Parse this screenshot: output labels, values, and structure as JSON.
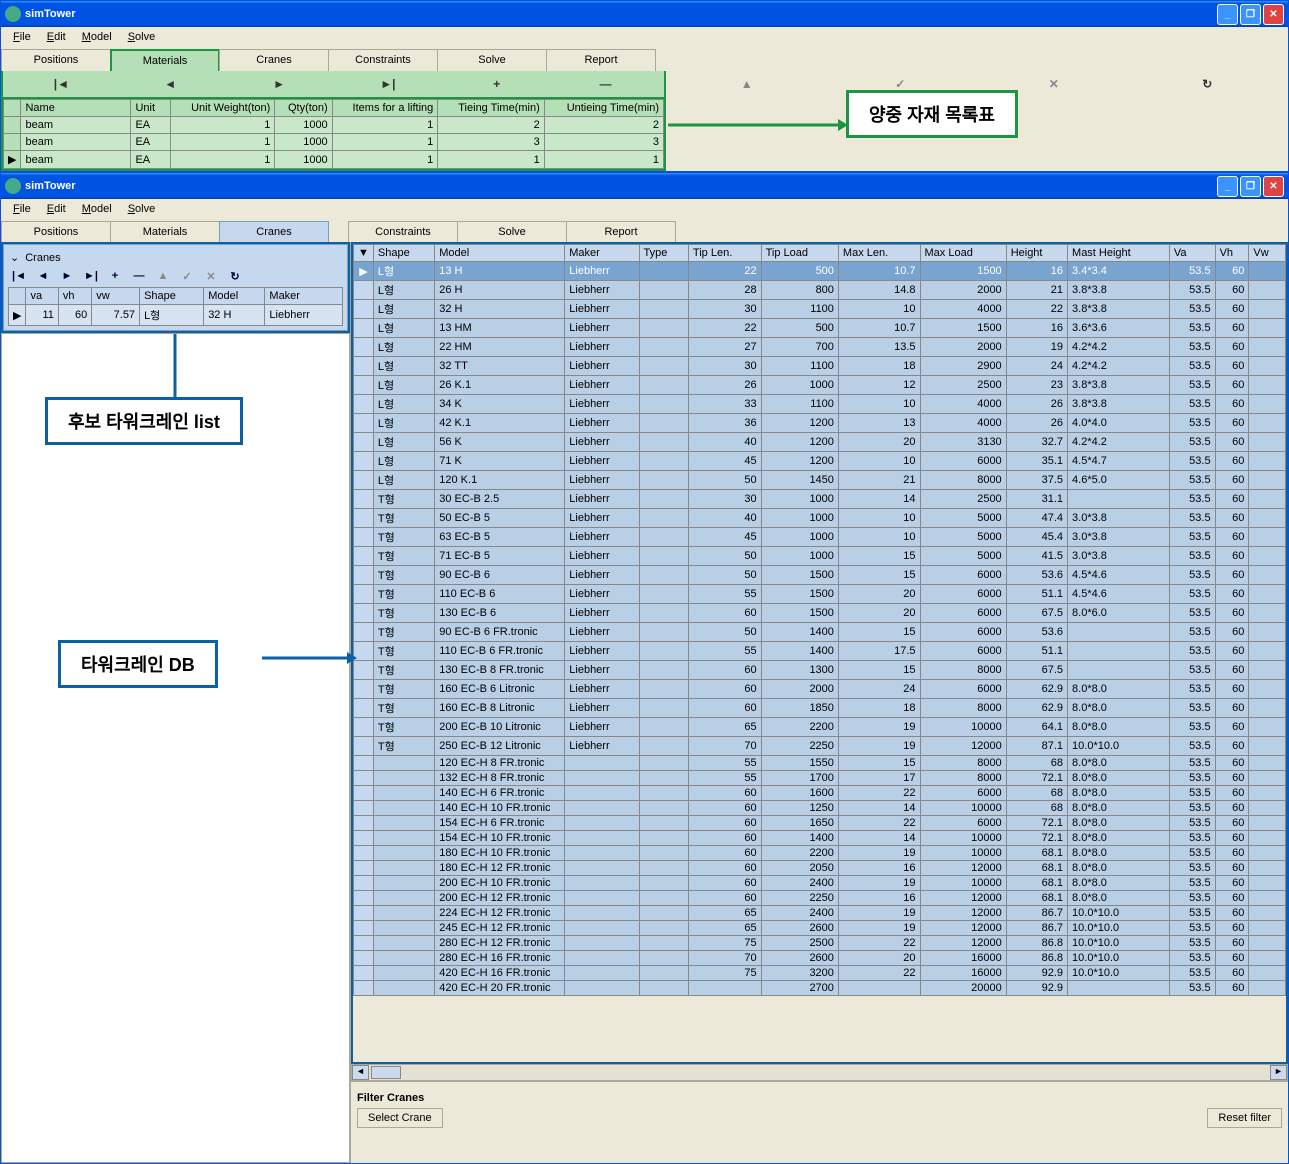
{
  "app": {
    "title": "simTower"
  },
  "menu": {
    "file": "File",
    "edit": "Edit",
    "model": "Model",
    "solve": "Solve"
  },
  "tabs": {
    "positions": "Positions",
    "materials": "Materials",
    "cranes": "Cranes",
    "constraints": "Constraints",
    "solve": "Solve",
    "report": "Report"
  },
  "nav": {
    "first": "|◄",
    "prev": "◄",
    "next": "►",
    "last": "►|",
    "plus": "+",
    "minus": "—",
    "up": "▲",
    "check": "✓",
    "x": "✕",
    "refresh": "↻"
  },
  "materials": {
    "headers": {
      "name": "Name",
      "unit": "Unit",
      "unitweight": "Unit Weight(ton)",
      "qty": "Qty(ton)",
      "items": "Items for a lifting",
      "tieing": "Tieing Time(min)",
      "untieing": "Untieing Time(min)"
    },
    "rows": [
      {
        "name": "beam",
        "unit": "EA",
        "uw": "1",
        "qty": "1000",
        "items": "1",
        "tie": "2",
        "untie": "2"
      },
      {
        "name": "beam",
        "unit": "EA",
        "uw": "1",
        "qty": "1000",
        "items": "1",
        "tie": "3",
        "untie": "3"
      },
      {
        "name": "beam",
        "unit": "EA",
        "uw": "1",
        "qty": "1000",
        "items": "1",
        "tie": "1",
        "untie": "1"
      }
    ]
  },
  "callouts": {
    "materials": "양중 자재 목록표",
    "candidate": "후보 타워크레인 list",
    "db": "타워크레인 DB"
  },
  "cranes": {
    "panel_title": "Cranes",
    "cand_headers": {
      "va": "va",
      "vh": "vh",
      "vw": "vw",
      "shape": "Shape",
      "model": "Model",
      "maker": "Maker"
    },
    "cand_row": {
      "va": "11",
      "vh": "60",
      "vw": "7.57",
      "shape": "L형",
      "model": "32 H",
      "maker": "Liebherr"
    },
    "db_headers": {
      "shape": "Shape",
      "model": "Model",
      "maker": "Maker",
      "type": "Type",
      "tiplen": "Tip Len.",
      "tipload": "Tip Load",
      "maxlen": "Max Len.",
      "maxload": "Max Load",
      "height": "Height",
      "mast": "Mast Height",
      "va": "Va",
      "vh": "Vh",
      "vw": "Vw"
    },
    "db_rows": [
      {
        "s": "L형",
        "m": "13 H",
        "mk": "Liebherr",
        "tl": "22",
        "tld": "500",
        "ml": "10.7",
        "mld": "1500",
        "h": "16",
        "mh": "3.4*3.4",
        "va": "53.5",
        "vh": "60",
        "sel": true
      },
      {
        "s": "L형",
        "m": "26 H",
        "mk": "Liebherr",
        "tl": "28",
        "tld": "800",
        "ml": "14.8",
        "mld": "2000",
        "h": "21",
        "mh": "3.8*3.8",
        "va": "53.5",
        "vh": "60"
      },
      {
        "s": "L형",
        "m": "32 H",
        "mk": "Liebherr",
        "tl": "30",
        "tld": "1100",
        "ml": "10",
        "mld": "4000",
        "h": "22",
        "mh": "3.8*3.8",
        "va": "53.5",
        "vh": "60"
      },
      {
        "s": "L형",
        "m": "13 HM",
        "mk": "Liebherr",
        "tl": "22",
        "tld": "500",
        "ml": "10.7",
        "mld": "1500",
        "h": "16",
        "mh": "3.6*3.6",
        "va": "53.5",
        "vh": "60"
      },
      {
        "s": "L형",
        "m": "22 HM",
        "mk": "Liebherr",
        "tl": "27",
        "tld": "700",
        "ml": "13.5",
        "mld": "2000",
        "h": "19",
        "mh": "4.2*4.2",
        "va": "53.5",
        "vh": "60"
      },
      {
        "s": "L형",
        "m": "32 TT",
        "mk": "Liebherr",
        "tl": "30",
        "tld": "1100",
        "ml": "18",
        "mld": "2900",
        "h": "24",
        "mh": "4.2*4.2",
        "va": "53.5",
        "vh": "60"
      },
      {
        "s": "L형",
        "m": "26 K.1",
        "mk": "Liebherr",
        "tl": "26",
        "tld": "1000",
        "ml": "12",
        "mld": "2500",
        "h": "23",
        "mh": "3.8*3.8",
        "va": "53.5",
        "vh": "60"
      },
      {
        "s": "L형",
        "m": "34 K",
        "mk": "Liebherr",
        "tl": "33",
        "tld": "1100",
        "ml": "10",
        "mld": "4000",
        "h": "26",
        "mh": "3.8*3.8",
        "va": "53.5",
        "vh": "60"
      },
      {
        "s": "L형",
        "m": "42 K.1",
        "mk": "Liebherr",
        "tl": "36",
        "tld": "1200",
        "ml": "13",
        "mld": "4000",
        "h": "26",
        "mh": "4.0*4.0",
        "va": "53.5",
        "vh": "60"
      },
      {
        "s": "L형",
        "m": "56 K",
        "mk": "Liebherr",
        "tl": "40",
        "tld": "1200",
        "ml": "20",
        "mld": "3130",
        "h": "32.7",
        "mh": "4.2*4.2",
        "va": "53.5",
        "vh": "60"
      },
      {
        "s": "L형",
        "m": "71 K",
        "mk": "Liebherr",
        "tl": "45",
        "tld": "1200",
        "ml": "10",
        "mld": "6000",
        "h": "35.1",
        "mh": "4.5*4.7",
        "va": "53.5",
        "vh": "60"
      },
      {
        "s": "L형",
        "m": "120 K.1",
        "mk": "Liebherr",
        "tl": "50",
        "tld": "1450",
        "ml": "21",
        "mld": "8000",
        "h": "37.5",
        "mh": "4.6*5.0",
        "va": "53.5",
        "vh": "60"
      },
      {
        "s": "T형",
        "m": "30 EC-B 2.5",
        "mk": "Liebherr",
        "tl": "30",
        "tld": "1000",
        "ml": "14",
        "mld": "2500",
        "h": "31.1",
        "mh": "",
        "va": "53.5",
        "vh": "60"
      },
      {
        "s": "T형",
        "m": "50 EC-B 5",
        "mk": "Liebherr",
        "tl": "40",
        "tld": "1000",
        "ml": "10",
        "mld": "5000",
        "h": "47.4",
        "mh": "3.0*3.8",
        "va": "53.5",
        "vh": "60"
      },
      {
        "s": "T형",
        "m": "63 EC-B 5",
        "mk": "Liebherr",
        "tl": "45",
        "tld": "1000",
        "ml": "10",
        "mld": "5000",
        "h": "45.4",
        "mh": "3.0*3.8",
        "va": "53.5",
        "vh": "60"
      },
      {
        "s": "T형",
        "m": "71 EC-B 5",
        "mk": "Liebherr",
        "tl": "50",
        "tld": "1000",
        "ml": "15",
        "mld": "5000",
        "h": "41.5",
        "mh": "3.0*3.8",
        "va": "53.5",
        "vh": "60"
      },
      {
        "s": "T형",
        "m": "90 EC-B 6",
        "mk": "Liebherr",
        "tl": "50",
        "tld": "1500",
        "ml": "15",
        "mld": "6000",
        "h": "53.6",
        "mh": "4.5*4.6",
        "va": "53.5",
        "vh": "60"
      },
      {
        "s": "T형",
        "m": "110 EC-B 6",
        "mk": "Liebherr",
        "tl": "55",
        "tld": "1500",
        "ml": "20",
        "mld": "6000",
        "h": "51.1",
        "mh": "4.5*4.6",
        "va": "53.5",
        "vh": "60"
      },
      {
        "s": "T형",
        "m": "130 EC-B 6",
        "mk": "Liebherr",
        "tl": "60",
        "tld": "1500",
        "ml": "20",
        "mld": "6000",
        "h": "67.5",
        "mh": "8.0*6.0",
        "va": "53.5",
        "vh": "60"
      },
      {
        "s": "T형",
        "m": "90 EC-B 6 FR.tronic",
        "mk": "Liebherr",
        "tl": "50",
        "tld": "1400",
        "ml": "15",
        "mld": "6000",
        "h": "53.6",
        "mh": "",
        "va": "53.5",
        "vh": "60"
      },
      {
        "s": "T형",
        "m": "110 EC-B 6 FR.tronic",
        "mk": "Liebherr",
        "tl": "55",
        "tld": "1400",
        "ml": "17.5",
        "mld": "6000",
        "h": "51.1",
        "mh": "",
        "va": "53.5",
        "vh": "60"
      },
      {
        "s": "T형",
        "m": "130 EC-B 8 FR.tronic",
        "mk": "Liebherr",
        "tl": "60",
        "tld": "1300",
        "ml": "15",
        "mld": "8000",
        "h": "67.5",
        "mh": "",
        "va": "53.5",
        "vh": "60"
      },
      {
        "s": "T형",
        "m": "160 EC-B 6 Litronic",
        "mk": "Liebherr",
        "tl": "60",
        "tld": "2000",
        "ml": "24",
        "mld": "6000",
        "h": "62.9",
        "mh": "8.0*8.0",
        "va": "53.5",
        "vh": "60"
      },
      {
        "s": "T형",
        "m": "160 EC-B 8 Litronic",
        "mk": "Liebherr",
        "tl": "60",
        "tld": "1850",
        "ml": "18",
        "mld": "8000",
        "h": "62.9",
        "mh": "8.0*8.0",
        "va": "53.5",
        "vh": "60"
      },
      {
        "s": "T형",
        "m": "200 EC-B 10 Litronic",
        "mk": "Liebherr",
        "tl": "65",
        "tld": "2200",
        "ml": "19",
        "mld": "10000",
        "h": "64.1",
        "mh": "8.0*8.0",
        "va": "53.5",
        "vh": "60"
      },
      {
        "s": "T형",
        "m": "250 EC-B 12 Litronic",
        "mk": "Liebherr",
        "tl": "70",
        "tld": "2250",
        "ml": "19",
        "mld": "12000",
        "h": "87.1",
        "mh": "10.0*10.0",
        "va": "53.5",
        "vh": "60"
      },
      {
        "s": "",
        "m": "120 EC-H 8 FR.tronic",
        "mk": "",
        "tl": "55",
        "tld": "1550",
        "ml": "15",
        "mld": "8000",
        "h": "68",
        "mh": "8.0*8.0",
        "va": "53.5",
        "vh": "60"
      },
      {
        "s": "",
        "m": "132 EC-H 8 FR.tronic",
        "mk": "",
        "tl": "55",
        "tld": "1700",
        "ml": "17",
        "mld": "8000",
        "h": "72.1",
        "mh": "8.0*8.0",
        "va": "53.5",
        "vh": "60"
      },
      {
        "s": "",
        "m": "140 EC-H 6 FR.tronic",
        "mk": "",
        "tl": "60",
        "tld": "1600",
        "ml": "22",
        "mld": "6000",
        "h": "68",
        "mh": "8.0*8.0",
        "va": "53.5",
        "vh": "60"
      },
      {
        "s": "",
        "m": "140 EC-H 10 FR.tronic",
        "mk": "",
        "tl": "60",
        "tld": "1250",
        "ml": "14",
        "mld": "10000",
        "h": "68",
        "mh": "8.0*8.0",
        "va": "53.5",
        "vh": "60"
      },
      {
        "s": "",
        "m": "154 EC-H 6 FR.tronic",
        "mk": "",
        "tl": "60",
        "tld": "1650",
        "ml": "22",
        "mld": "6000",
        "h": "72.1",
        "mh": "8.0*8.0",
        "va": "53.5",
        "vh": "60"
      },
      {
        "s": "",
        "m": "154 EC-H 10 FR.tronic",
        "mk": "",
        "tl": "60",
        "tld": "1400",
        "ml": "14",
        "mld": "10000",
        "h": "72.1",
        "mh": "8.0*8.0",
        "va": "53.5",
        "vh": "60"
      },
      {
        "s": "",
        "m": "180 EC-H 10 FR.tronic",
        "mk": "",
        "tl": "60",
        "tld": "2200",
        "ml": "19",
        "mld": "10000",
        "h": "68.1",
        "mh": "8.0*8.0",
        "va": "53.5",
        "vh": "60"
      },
      {
        "s": "",
        "m": "180 EC-H 12 FR.tronic",
        "mk": "",
        "tl": "60",
        "tld": "2050",
        "ml": "16",
        "mld": "12000",
        "h": "68.1",
        "mh": "8.0*8.0",
        "va": "53.5",
        "vh": "60"
      },
      {
        "s": "",
        "m": "200 EC-H 10 FR.tronic",
        "mk": "",
        "tl": "60",
        "tld": "2400",
        "ml": "19",
        "mld": "10000",
        "h": "68.1",
        "mh": "8.0*8.0",
        "va": "53.5",
        "vh": "60"
      },
      {
        "s": "",
        "m": "200 EC-H 12 FR.tronic",
        "mk": "",
        "tl": "60",
        "tld": "2250",
        "ml": "16",
        "mld": "12000",
        "h": "68.1",
        "mh": "8.0*8.0",
        "va": "53.5",
        "vh": "60"
      },
      {
        "s": "",
        "m": "224 EC-H 12 FR.tronic",
        "mk": "",
        "tl": "65",
        "tld": "2400",
        "ml": "19",
        "mld": "12000",
        "h": "86.7",
        "mh": "10.0*10.0",
        "va": "53.5",
        "vh": "60"
      },
      {
        "s": "",
        "m": "245 EC-H 12 FR.tronic",
        "mk": "",
        "tl": "65",
        "tld": "2600",
        "ml": "19",
        "mld": "12000",
        "h": "86.7",
        "mh": "10.0*10.0",
        "va": "53.5",
        "vh": "60"
      },
      {
        "s": "",
        "m": "280 EC-H 12 FR.tronic",
        "mk": "",
        "tl": "75",
        "tld": "2500",
        "ml": "22",
        "mld": "12000",
        "h": "86.8",
        "mh": "10.0*10.0",
        "va": "53.5",
        "vh": "60"
      },
      {
        "s": "",
        "m": "280 EC-H 16 FR.tronic",
        "mk": "",
        "tl": "70",
        "tld": "2600",
        "ml": "20",
        "mld": "16000",
        "h": "86.8",
        "mh": "10.0*10.0",
        "va": "53.5",
        "vh": "60"
      },
      {
        "s": "",
        "m": "420 EC-H 16 FR.tronic",
        "mk": "",
        "tl": "75",
        "tld": "3200",
        "ml": "22",
        "mld": "16000",
        "h": "92.9",
        "mh": "10.0*10.0",
        "va": "53.5",
        "vh": "60"
      },
      {
        "s": "",
        "m": "420 EC-H 20 FR.tronic",
        "mk": "",
        "tl": "",
        "tld": "2700",
        "ml": "",
        "mld": "20000",
        "h": "92.9",
        "mh": "",
        "va": "53.5",
        "vh": "60"
      }
    ]
  },
  "filter": {
    "title": "Filter Cranes",
    "select": "Select Crane",
    "reset": "Reset filter"
  }
}
